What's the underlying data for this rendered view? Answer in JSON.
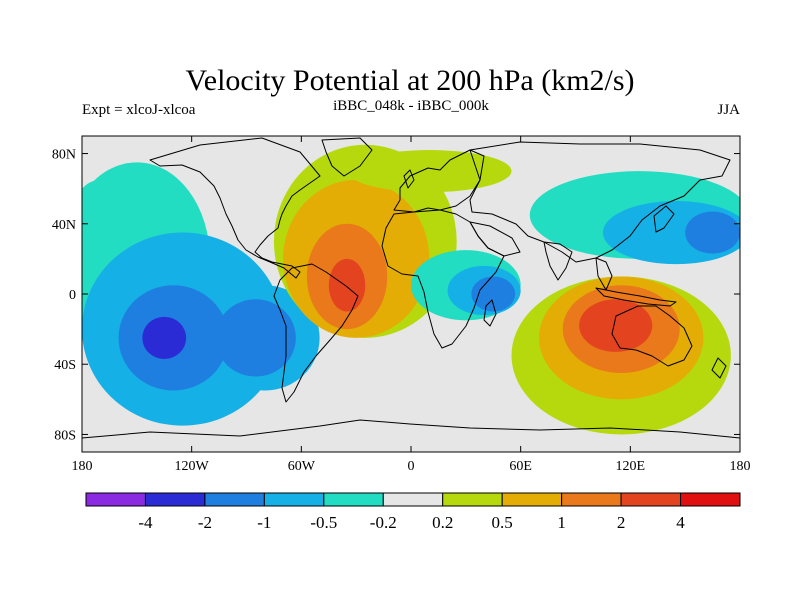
{
  "figure": {
    "title": "Velocity Potential at 200 hPa (km2/s)",
    "left_subtitle": "Expt = xlcoJ-xlcoa",
    "center_subtitle": "iBBC_048k - iBBC_000k",
    "right_subtitle": "JJA"
  },
  "map": {
    "projection": "cylindrical-equidistant",
    "lon_range": [
      -180,
      180
    ],
    "lat_range": [
      -90,
      90
    ],
    "lon_ticks": [
      {
        "value": -180,
        "label": "180"
      },
      {
        "value": -120,
        "label": "120W"
      },
      {
        "value": -60,
        "label": "60W"
      },
      {
        "value": 0,
        "label": "0"
      },
      {
        "value": 60,
        "label": "60E"
      },
      {
        "value": 120,
        "label": "120E"
      },
      {
        "value": 180,
        "label": "180"
      }
    ],
    "lat_ticks": [
      {
        "value": 80,
        "label": "80N"
      },
      {
        "value": 40,
        "label": "40N"
      },
      {
        "value": 0,
        "label": "0"
      },
      {
        "value": -40,
        "label": "40S"
      },
      {
        "value": -80,
        "label": "80S"
      }
    ],
    "background_color": "#e6e6e6"
  },
  "colorbar": {
    "colors": [
      "#8a2be2",
      "#2b2bd6",
      "#1f7fe0",
      "#15b0e6",
      "#22ddc2",
      "#e6e6e6",
      "#b6d90e",
      "#e3ad05",
      "#e9791a",
      "#e3441f",
      "#e01010"
    ],
    "labels": [
      "-4",
      "-2",
      "-1",
      "-0.5",
      "-0.2",
      "0.2",
      "0.5",
      "1",
      "2",
      "4"
    ]
  },
  "field_regions": [
    {
      "level": 4,
      "lon": -150,
      "lat": 20,
      "rx": 40,
      "ry": 55
    },
    {
      "level": 4,
      "lon": -170,
      "lat": 45,
      "rx": 15,
      "ry": 20
    },
    {
      "level": 3,
      "lon": -125,
      "lat": -20,
      "rx": 55,
      "ry": 55
    },
    {
      "level": 3,
      "lon": -80,
      "lat": -25,
      "rx": 30,
      "ry": 30
    },
    {
      "level": 2,
      "lon": -130,
      "lat": -25,
      "rx": 30,
      "ry": 30
    },
    {
      "level": 2,
      "lon": -85,
      "lat": -25,
      "rx": 22,
      "ry": 22
    },
    {
      "level": 1,
      "lon": -135,
      "lat": -25,
      "rx": 12,
      "ry": 12
    },
    {
      "level": 6,
      "lon": -25,
      "lat": 30,
      "rx": 50,
      "ry": 55
    },
    {
      "level": 7,
      "lon": -30,
      "lat": 20,
      "rx": 40,
      "ry": 45
    },
    {
      "level": 8,
      "lon": -35,
      "lat": 10,
      "rx": 22,
      "ry": 30
    },
    {
      "level": 9,
      "lon": -35,
      "lat": 5,
      "rx": 10,
      "ry": 15
    },
    {
      "level": 4,
      "lon": 30,
      "lat": 5,
      "rx": 30,
      "ry": 20
    },
    {
      "level": 3,
      "lon": 40,
      "lat": 2,
      "rx": 20,
      "ry": 14
    },
    {
      "level": 2,
      "lon": 45,
      "lat": 0,
      "rx": 12,
      "ry": 10
    },
    {
      "level": 6,
      "lon": 115,
      "lat": -35,
      "rx": 60,
      "ry": 45
    },
    {
      "level": 7,
      "lon": 115,
      "lat": -25,
      "rx": 45,
      "ry": 35
    },
    {
      "level": 8,
      "lon": 115,
      "lat": -20,
      "rx": 32,
      "ry": 25
    },
    {
      "level": 9,
      "lon": 112,
      "lat": -18,
      "rx": 20,
      "ry": 15
    },
    {
      "level": 4,
      "lon": 125,
      "lat": 45,
      "rx": 60,
      "ry": 25
    },
    {
      "level": 3,
      "lon": 145,
      "lat": 35,
      "rx": 40,
      "ry": 18
    },
    {
      "level": 2,
      "lon": 165,
      "lat": 35,
      "rx": 15,
      "ry": 12
    },
    {
      "level": 6,
      "lon": 10,
      "lat": 70,
      "rx": 45,
      "ry": 12
    }
  ]
}
